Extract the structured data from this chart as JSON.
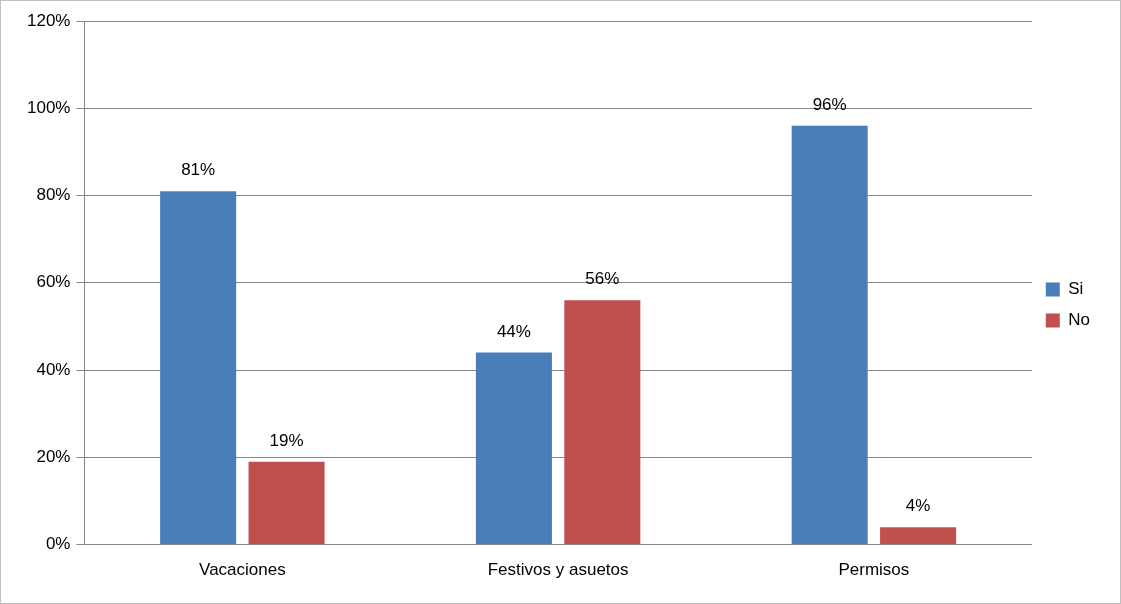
{
  "chart_data": {
    "type": "bar",
    "categories": [
      "Vacaciones",
      "Festivos y asuetos",
      "Permisos"
    ],
    "series": [
      {
        "name": "Si",
        "color": "#4a7ebb",
        "values": [
          81,
          44,
          96
        ],
        "value_labels": [
          "81%",
          "44%",
          "96%"
        ]
      },
      {
        "name": "No",
        "color": "#c0504d",
        "values": [
          19,
          56,
          4
        ],
        "value_labels": [
          "19%",
          "56%",
          "4%"
        ]
      }
    ],
    "ylim": [
      0,
      120
    ],
    "yticks": [
      {
        "value": 0,
        "label": "0%"
      },
      {
        "value": 20,
        "label": "20%"
      },
      {
        "value": 40,
        "label": "40%"
      },
      {
        "value": 60,
        "label": "60%"
      },
      {
        "value": 80,
        "label": "80%"
      },
      {
        "value": 100,
        "label": "100%"
      },
      {
        "value": 120,
        "label": "120%"
      }
    ],
    "grid": "y",
    "legend": "right"
  }
}
